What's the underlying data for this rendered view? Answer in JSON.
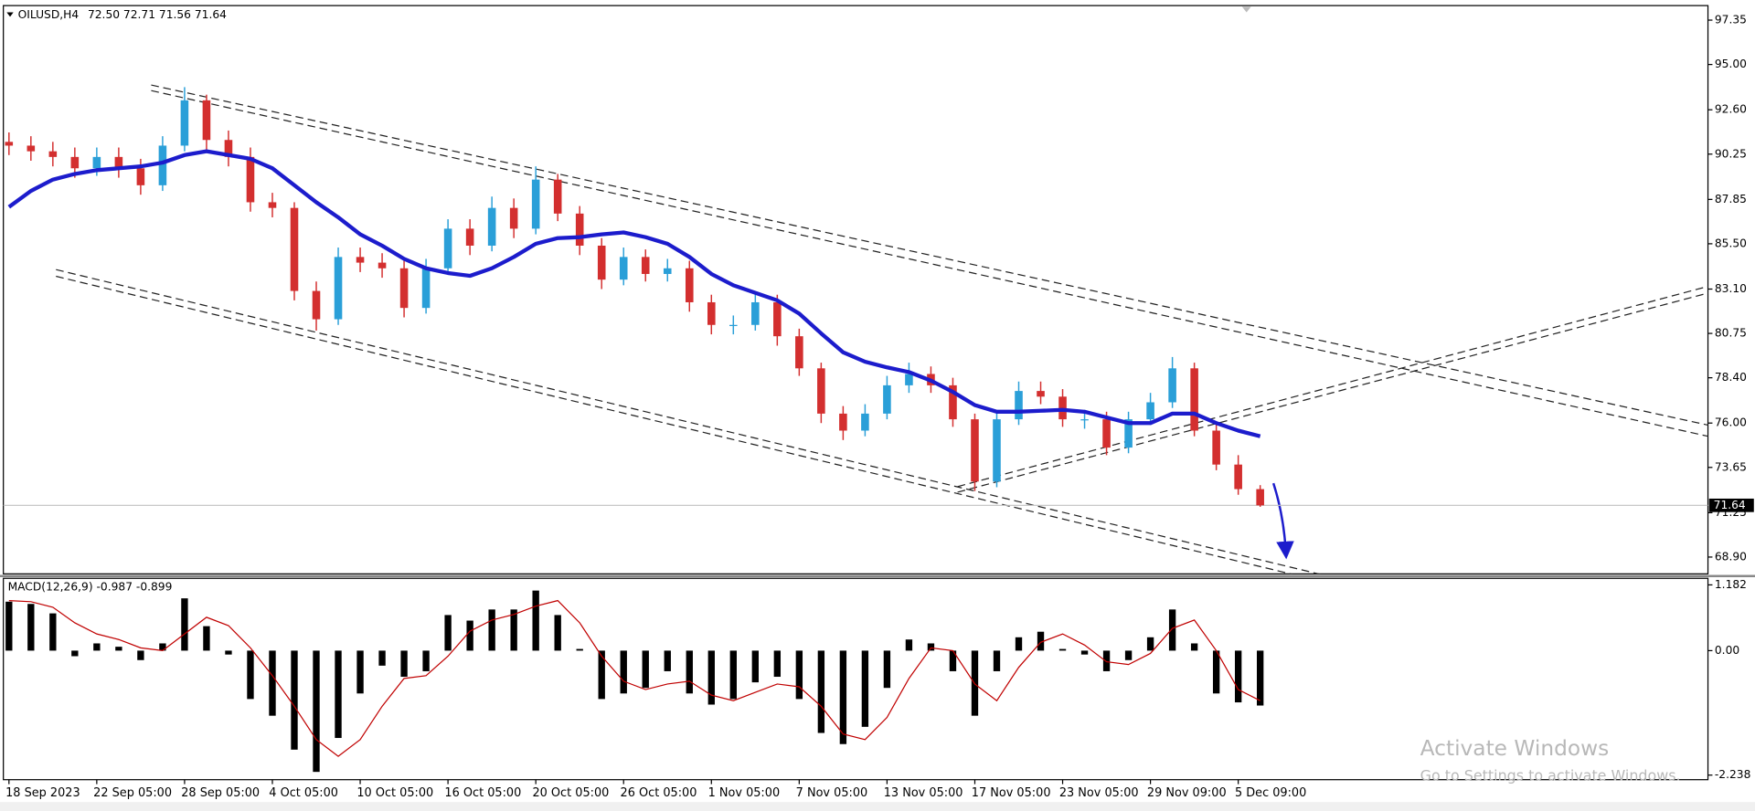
{
  "chart_data": [
    {
      "type": "candlestick",
      "title": "OILUSD,H4",
      "subtitle": "72.50 72.71 71.56 71.64",
      "categories": [
        "18 Sep 2023",
        null,
        null,
        null,
        "22 Sep 05:00",
        null,
        null,
        null,
        "28 Sep 05:00",
        null,
        null,
        null,
        "4 Oct 05:00",
        null,
        null,
        null,
        "10 Oct 05:00",
        null,
        null,
        null,
        "16 Oct 05:00",
        null,
        null,
        null,
        "20 Oct 05:00",
        null,
        null,
        null,
        "26 Oct 05:00",
        null,
        null,
        null,
        "1 Nov 05:00",
        null,
        null,
        null,
        "7 Nov 05:00",
        null,
        null,
        null,
        "13 Nov 05:00",
        null,
        null,
        null,
        "17 Nov 05:00",
        null,
        null,
        null,
        "23 Nov 05:00",
        null,
        null,
        null,
        "29 Nov 09:00",
        null,
        null,
        null,
        "5 Dec 09:00",
        null
      ],
      "open": [
        90.9,
        90.7,
        90.4,
        90.1,
        89.5,
        90.1,
        89.5,
        88.6,
        90.7,
        93.1,
        91.0,
        90.1,
        87.7,
        87.4,
        83.0,
        81.5,
        84.8,
        84.5,
        84.2,
        82.1,
        84.2,
        86.3,
        85.4,
        87.4,
        86.3,
        88.9,
        87.1,
        85.4,
        83.6,
        84.8,
        83.9,
        84.2,
        82.4,
        81.2,
        81.2,
        82.4,
        80.6,
        78.9,
        76.5,
        75.6,
        76.5,
        78.0,
        78.6,
        78.0,
        76.2,
        72.9,
        76.2,
        77.7,
        77.4,
        76.2,
        76.2,
        74.7,
        76.2,
        77.1,
        78.9,
        75.6,
        73.8,
        72.5
      ],
      "high": [
        91.4,
        91.2,
        90.9,
        90.6,
        90.6,
        90.6,
        90.0,
        91.2,
        93.8,
        93.4,
        91.5,
        90.6,
        88.2,
        87.7,
        83.5,
        85.3,
        85.3,
        85.0,
        84.6,
        84.7,
        86.8,
        86.8,
        88.0,
        87.9,
        89.6,
        89.2,
        87.5,
        85.8,
        85.3,
        85.2,
        84.7,
        84.6,
        82.8,
        81.7,
        82.9,
        82.8,
        81.0,
        79.2,
        76.9,
        77.0,
        78.5,
        79.2,
        79.0,
        78.4,
        76.5,
        76.6,
        78.2,
        78.2,
        77.8,
        76.7,
        76.6,
        76.6,
        77.6,
        79.5,
        79.2,
        76.0,
        74.3,
        72.71
      ],
      "low": [
        90.2,
        89.9,
        89.6,
        89.0,
        89.1,
        89.0,
        88.1,
        88.3,
        90.4,
        90.5,
        89.6,
        87.2,
        86.9,
        82.5,
        80.9,
        81.2,
        84.0,
        83.7,
        81.6,
        81.8,
        83.9,
        84.9,
        85.1,
        85.8,
        86.0,
        86.7,
        84.9,
        83.1,
        83.3,
        83.5,
        83.5,
        81.9,
        80.7,
        80.7,
        80.9,
        80.1,
        78.5,
        76.0,
        75.1,
        75.3,
        76.2,
        77.6,
        77.6,
        75.8,
        72.4,
        72.6,
        75.9,
        77.0,
        75.8,
        75.7,
        74.3,
        74.4,
        75.9,
        76.8,
        75.3,
        73.5,
        72.2,
        71.56
      ],
      "close": [
        90.7,
        90.4,
        90.1,
        89.5,
        90.1,
        89.5,
        88.6,
        90.7,
        93.1,
        91.0,
        90.1,
        87.7,
        87.4,
        83.0,
        81.5,
        84.8,
        84.5,
        84.2,
        82.1,
        84.2,
        86.3,
        85.4,
        87.4,
        86.3,
        88.9,
        87.1,
        85.4,
        83.6,
        84.8,
        83.9,
        84.2,
        82.4,
        81.2,
        81.2,
        82.4,
        80.6,
        78.9,
        76.5,
        75.6,
        76.5,
        78.0,
        78.6,
        78.0,
        76.2,
        72.9,
        76.2,
        77.7,
        77.4,
        76.2,
        76.2,
        74.7,
        76.2,
        77.1,
        78.9,
        75.6,
        73.8,
        72.5,
        71.64
      ],
      "up_color": "#2a9fd8",
      "down_color": "#d32f2f",
      "ma": {
        "color": "#1c1ccc",
        "values": [
          87.45,
          88.3,
          88.9,
          89.2,
          89.4,
          89.5,
          89.6,
          89.8,
          90.2,
          90.4,
          90.2,
          90.0,
          89.5,
          88.6,
          87.7,
          86.9,
          86.0,
          85.4,
          84.7,
          84.2,
          83.95,
          83.8,
          84.2,
          84.8,
          85.5,
          85.8,
          85.85,
          86.0,
          86.1,
          85.85,
          85.5,
          84.8,
          83.9,
          83.3,
          82.9,
          82.5,
          81.8,
          80.75,
          79.75,
          79.25,
          78.95,
          78.7,
          78.25,
          77.65,
          76.95,
          76.6,
          76.6,
          76.65,
          76.7,
          76.6,
          76.3,
          76.0,
          76.0,
          76.5,
          76.5,
          76.0,
          75.6,
          75.3
        ]
      },
      "last_price": {
        "value": 71.64,
        "label": "71.64"
      },
      "ylim": [
        68.01,
        98.12
      ],
      "yticks": [
        {
          "value": 97.35,
          "label": "97.35"
        },
        {
          "value": 95,
          "label": "95.00"
        },
        {
          "value": 92.6,
          "label": "92.60"
        },
        {
          "value": 90.25,
          "label": "90.25"
        },
        {
          "value": 87.85,
          "label": "87.85"
        },
        {
          "value": 85.5,
          "label": "85.50"
        },
        {
          "value": 83.1,
          "label": "83.10"
        },
        {
          "value": 80.75,
          "label": "80.75"
        },
        {
          "value": 78.4,
          "label": "78.40"
        },
        {
          "value": 76,
          "label": "76.00"
        },
        {
          "value": 73.65,
          "label": "73.65"
        },
        {
          "value": 71.25,
          "label": "71.25"
        },
        {
          "value": 68.9,
          "label": "68.90"
        }
      ],
      "grid": false
    },
    {
      "type": "macd",
      "title": "MACD(12,26,9) -0.987 -0.899",
      "values": [
        0.88,
        0.84,
        0.67,
        -0.1,
        0.13,
        0.07,
        -0.17,
        0.13,
        0.94,
        0.44,
        -0.07,
        -0.87,
        -1.17,
        -1.78,
        -2.18,
        -1.57,
        -0.77,
        -0.27,
        -0.47,
        -0.37,
        0.64,
        0.54,
        0.74,
        0.74,
        1.08,
        0.64,
        0.03,
        -0.87,
        -0.77,
        -0.67,
        -0.37,
        -0.77,
        -0.97,
        -0.87,
        -0.57,
        -0.47,
        -0.87,
        -1.48,
        -1.68,
        -1.37,
        -0.67,
        0.2,
        0.13,
        -0.37,
        -1.17,
        -0.37,
        0.24,
        0.34,
        0.03,
        -0.07,
        -0.37,
        -0.17,
        0.24,
        0.74,
        0.13,
        -0.77,
        -0.93,
        -0.987
      ],
      "color": "#000000",
      "signal": {
        "color": "#c00000",
        "values": [
          0.9,
          0.88,
          0.78,
          0.5,
          0.3,
          0.2,
          0.05,
          0.0,
          0.3,
          0.6,
          0.45,
          0.05,
          -0.45,
          -1.0,
          -1.6,
          -1.9,
          -1.6,
          -1.0,
          -0.5,
          -0.45,
          -0.1,
          0.35,
          0.55,
          0.65,
          0.8,
          0.9,
          0.5,
          -0.1,
          -0.55,
          -0.7,
          -0.6,
          -0.55,
          -0.8,
          -0.9,
          -0.75,
          -0.6,
          -0.65,
          -1.0,
          -1.5,
          -1.6,
          -1.2,
          -0.5,
          0.05,
          0.0,
          -0.6,
          -0.9,
          -0.3,
          0.15,
          0.3,
          0.1,
          -0.2,
          -0.25,
          -0.05,
          0.4,
          0.55,
          0.0,
          -0.7,
          -0.899
        ]
      },
      "ylim": [
        -2.32,
        1.3
      ],
      "yticks": [
        1.182,
        {
          "value": 0,
          "label": "0.00"
        },
        -2.238
      ],
      "grid": false
    }
  ],
  "watermark": {
    "title": "Activate Windows",
    "subtitle": "Go to Settings to activate Windows."
  }
}
